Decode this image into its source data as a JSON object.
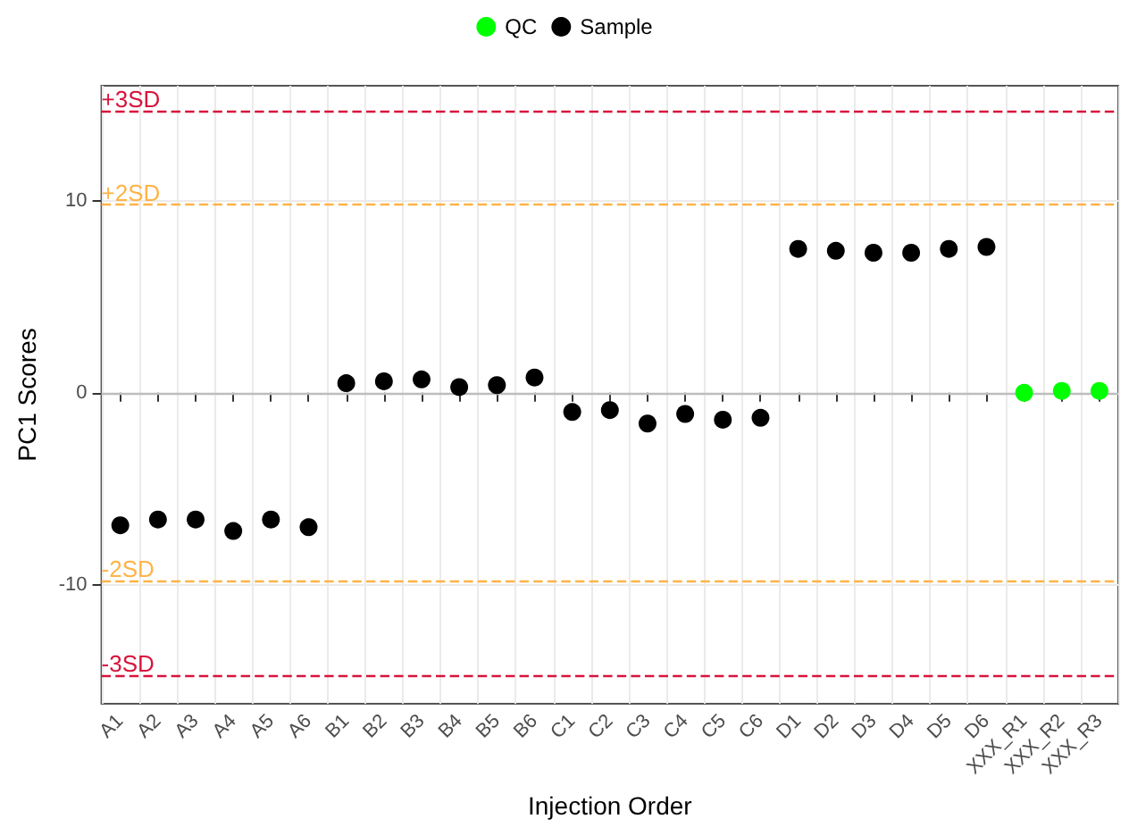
{
  "chart_data": {
    "type": "scatter",
    "xlabel": "Injection Order",
    "ylabel": "PC1 Scores",
    "categories": [
      "A1",
      "A2",
      "A3",
      "A4",
      "A5",
      "A6",
      "B1",
      "B2",
      "B3",
      "B4",
      "B5",
      "B6",
      "C1",
      "C2",
      "C3",
      "C4",
      "C5",
      "C6",
      "D1",
      "D2",
      "D3",
      "D4",
      "D5",
      "D6",
      "XXX_R1",
      "XXX_R2",
      "XXX_R3"
    ],
    "series": [
      {
        "name": "QC",
        "color": "#00ff00",
        "values": [
          null,
          null,
          null,
          null,
          null,
          null,
          null,
          null,
          null,
          null,
          null,
          null,
          null,
          null,
          null,
          null,
          null,
          null,
          null,
          null,
          null,
          null,
          null,
          null,
          0.0,
          0.1,
          0.1
        ]
      },
      {
        "name": "Sample",
        "color": "#000000",
        "values": [
          -6.9,
          -6.6,
          -6.6,
          -7.2,
          -6.6,
          -7.0,
          0.5,
          0.6,
          0.7,
          0.3,
          0.4,
          0.8,
          -1.0,
          -0.9,
          -1.6,
          -1.1,
          -1.4,
          -1.3,
          7.5,
          7.4,
          7.3,
          7.3,
          7.5,
          7.6,
          null,
          null,
          null
        ]
      }
    ],
    "ylim": [
      -16.2,
      16.0
    ],
    "yticks": [
      -10,
      0,
      10
    ],
    "ref_lines": [
      {
        "axis": "y",
        "value": 14.7,
        "label": "+3SD",
        "color": "#d7143c",
        "line_style": "dashed"
      },
      {
        "axis": "y",
        "value": 9.8,
        "label": "+2SD",
        "color": "#ffb347",
        "line_style": "dashed"
      },
      {
        "axis": "y",
        "value": 0,
        "label": null,
        "color": "#bdbdbd",
        "line_style": "solid"
      },
      {
        "axis": "y",
        "value": -9.8,
        "label": "-2SD",
        "color": "#ffb347",
        "line_style": "dashed"
      },
      {
        "axis": "y",
        "value": -14.7,
        "label": "-3SD",
        "color": "#d7143c",
        "line_style": "dashed"
      }
    ],
    "grid": true,
    "legend": "top",
    "marker": "circle"
  }
}
